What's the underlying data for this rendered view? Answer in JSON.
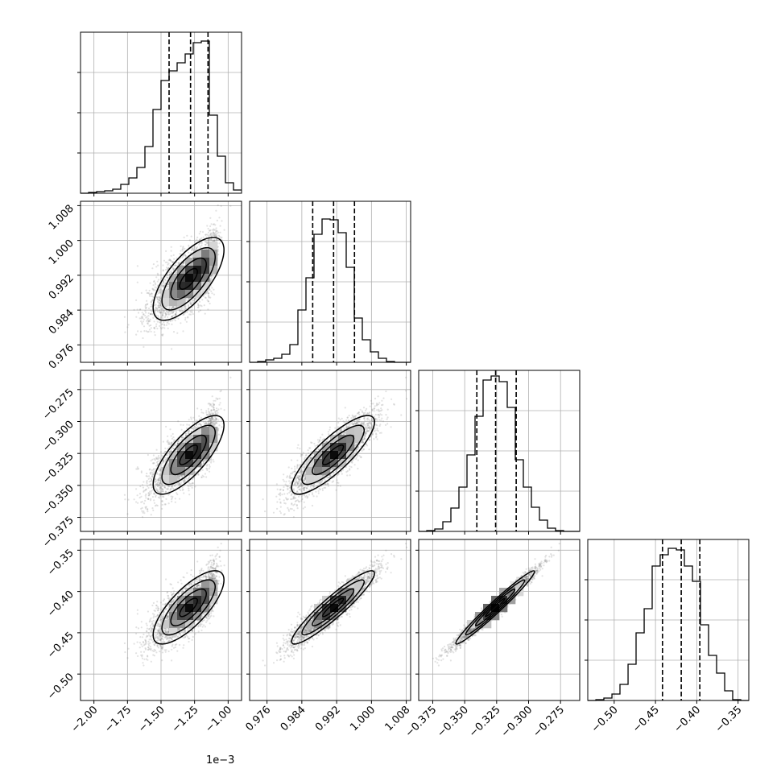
{
  "chart_data": {
    "type": "corner",
    "grid": true,
    "axis_offset_label": "1e−3",
    "parameters": [
      {
        "range": [
          -2.1,
          -0.9
        ],
        "ticks": [
          -2.0,
          -1.75,
          -1.5,
          -1.25,
          -1.0
        ],
        "tick_labels": [
          "−2.00",
          "−1.75",
          "−1.50",
          "−1.25",
          "−1.00"
        ],
        "quantiles": [
          -1.44,
          -1.28,
          -1.15
        ],
        "hist_edges": [
          -2.1,
          -2.04,
          -1.98,
          -1.92,
          -1.86,
          -1.8,
          -1.74,
          -1.68,
          -1.62,
          -1.56,
          -1.5,
          -1.44,
          -1.38,
          -1.32,
          -1.26,
          -1.2,
          -1.14,
          -1.08,
          -1.02,
          -0.96,
          -0.9
        ],
        "hist_counts": [
          0,
          1,
          2,
          3,
          5,
          11,
          19,
          32,
          58,
          104,
          140,
          152,
          162,
          173,
          187,
          189,
          97,
          46,
          13,
          4
        ],
        "hist_ylim": [
          0,
          200
        ],
        "hist_grid": [
          50,
          100,
          150
        ]
      },
      {
        "range": [
          0.972,
          1.009
        ],
        "ticks": [
          0.976,
          0.984,
          0.992,
          1.0,
          1.008
        ],
        "tick_labels": [
          "0.976",
          "0.984",
          "0.992",
          "1.000",
          "1.008"
        ],
        "quantiles": [
          0.9865,
          0.9913,
          0.9961
        ],
        "hist_edges": [
          0.972,
          0.97385,
          0.9757,
          0.97755,
          0.9794,
          0.98125,
          0.9831,
          0.98495,
          0.9868,
          0.98865,
          0.9905,
          0.99235,
          0.9942,
          0.99605,
          0.9979,
          0.99975,
          1.0016,
          1.00345,
          1.0053,
          1.00715,
          1.009
        ],
        "hist_counts": [
          0,
          1,
          3,
          5,
          10,
          22,
          65,
          105,
          159,
          178,
          177,
          161,
          118,
          55,
          28,
          13,
          5,
          1,
          0,
          0
        ],
        "hist_ylim": [
          0,
          200
        ],
        "hist_grid": [
          50,
          100,
          150
        ]
      },
      {
        "range": [
          -0.386,
          -0.26
        ],
        "ticks": [
          -0.375,
          -0.35,
          -0.325,
          -0.3,
          -0.275
        ],
        "tick_labels": [
          "−0.375",
          "−0.350",
          "−0.325",
          "−0.300",
          "−0.275"
        ],
        "quantiles": [
          -0.3405,
          -0.3258,
          -0.3097
        ],
        "hist_edges": [
          -0.386,
          -0.3797,
          -0.3734,
          -0.3671,
          -0.3608,
          -0.3545,
          -0.3482,
          -0.3419,
          -0.3356,
          -0.3293,
          -0.323,
          -0.3167,
          -0.3104,
          -0.3041,
          -0.2978,
          -0.2915,
          -0.2852,
          -0.2789,
          -0.2726,
          -0.2663,
          -0.26
        ],
        "hist_counts": [
          0,
          1,
          3,
          12,
          29,
          55,
          95,
          143,
          188,
          193,
          186,
          154,
          89,
          55,
          30,
          14,
          4,
          1,
          0,
          0
        ],
        "hist_ylim": [
          0,
          200
        ],
        "hist_grid": [
          50,
          100,
          150
        ]
      },
      {
        "range": [
          -0.532,
          -0.337
        ],
        "ticks": [
          -0.5,
          -0.45,
          -0.4,
          -0.35
        ],
        "tick_labels": [
          "−0.50",
          "−0.45",
          "−0.40",
          "−0.35"
        ],
        "quantiles": [
          -0.4415,
          -0.4188,
          -0.3963
        ],
        "hist_edges": [
          -0.532,
          -0.5222,
          -0.5125,
          -0.5027,
          -0.493,
          -0.4832,
          -0.4735,
          -0.4637,
          -0.454,
          -0.4443,
          -0.4345,
          -0.4247,
          -0.415,
          -0.4052,
          -0.3955,
          -0.3857,
          -0.376,
          -0.3662,
          -0.3565,
          -0.3467,
          -0.337
        ],
        "hist_counts": [
          0,
          1,
          3,
          8,
          20,
          45,
          84,
          114,
          167,
          181,
          189,
          187,
          167,
          148,
          94,
          56,
          34,
          12,
          1,
          0
        ],
        "hist_ylim": [
          0,
          200
        ],
        "hist_grid": [
          50,
          100,
          150
        ]
      }
    ]
  }
}
